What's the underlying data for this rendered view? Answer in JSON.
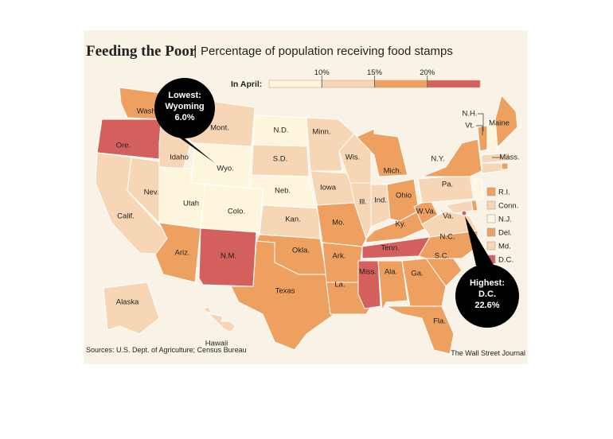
{
  "title": "Feeding the Poor",
  "subtitle": "Percentage of population receiving food stamps",
  "legend": {
    "label": "In April:",
    "colors": [
      "#fdf5dc",
      "#f6d6b4",
      "#eea060",
      "#d4605e"
    ],
    "ticks": [
      {
        "value": 10,
        "label": "10%"
      },
      {
        "value": 15,
        "label": "15%"
      },
      {
        "value": 20,
        "label": "20%"
      }
    ]
  },
  "states": [
    {
      "label": "Wash.",
      "bin": 2
    },
    {
      "label": "Ore.",
      "bin": 3
    },
    {
      "label": "Calif.",
      "bin": 1
    },
    {
      "label": "Nev.",
      "bin": 1
    },
    {
      "label": "Idaho",
      "bin": 1
    },
    {
      "label": "Mont.",
      "bin": 1
    },
    {
      "label": "Wyo.",
      "bin": 0
    },
    {
      "label": "Utah",
      "bin": 0
    },
    {
      "label": "Colo.",
      "bin": 0
    },
    {
      "label": "Ariz.",
      "bin": 2
    },
    {
      "label": "N.M.",
      "bin": 3
    },
    {
      "label": "N.D.",
      "bin": 0
    },
    {
      "label": "S.D.",
      "bin": 1
    },
    {
      "label": "Neb.",
      "bin": 0
    },
    {
      "label": "Kan.",
      "bin": 1
    },
    {
      "label": "Okla.",
      "bin": 2
    },
    {
      "label": "Texas",
      "bin": 2
    },
    {
      "label": "Minn.",
      "bin": 1
    },
    {
      "label": "Iowa",
      "bin": 1
    },
    {
      "label": "Mo.",
      "bin": 2
    },
    {
      "label": "Ark.",
      "bin": 2
    },
    {
      "label": "La.",
      "bin": 2
    },
    {
      "label": "Wis.",
      "bin": 1
    },
    {
      "label": "Ill.",
      "bin": 1
    },
    {
      "label": "Mich.",
      "bin": 2
    },
    {
      "label": "Ind.",
      "bin": 1
    },
    {
      "label": "Ohio",
      "bin": 2
    },
    {
      "label": "Ky.",
      "bin": 2
    },
    {
      "label": "Tenn.",
      "bin": 3
    },
    {
      "label": "Miss.",
      "bin": 3
    },
    {
      "label": "Ala.",
      "bin": 2
    },
    {
      "label": "Ga.",
      "bin": 2
    },
    {
      "label": "Fla.",
      "bin": 2
    },
    {
      "label": "S.C.",
      "bin": 2
    },
    {
      "label": "N.C.",
      "bin": 2
    },
    {
      "label": "Va.",
      "bin": 1
    },
    {
      "label": "W.Va.",
      "bin": 2
    },
    {
      "label": "Pa.",
      "bin": 1
    },
    {
      "label": "N.Y.",
      "bin": 2
    },
    {
      "label": "Vt.",
      "bin": 2
    },
    {
      "label": "N.H.",
      "bin": 0
    },
    {
      "label": "Maine",
      "bin": 2
    },
    {
      "label": "Mass.",
      "bin": 1
    },
    {
      "label": "R.I.",
      "bin": 2
    },
    {
      "label": "Conn.",
      "bin": 1
    },
    {
      "label": "N.J.",
      "bin": 0
    },
    {
      "label": "Del.",
      "bin": 2
    },
    {
      "label": "Md.",
      "bin": 1
    },
    {
      "label": "D.C.",
      "bin": 3
    },
    {
      "label": "Alaska",
      "bin": 1
    },
    {
      "label": "Hawaii",
      "bin": 1
    }
  ],
  "callouts": [
    {
      "heading": "Lowest:",
      "name": "Wyoming",
      "value": "6.0%"
    },
    {
      "heading": "Highest:",
      "name": "D.C.",
      "value": "22.6%"
    }
  ],
  "source": "Sources: U.S. Dept. of Agriculture; Census Bureau",
  "credit": "The Wall Street Journal"
}
